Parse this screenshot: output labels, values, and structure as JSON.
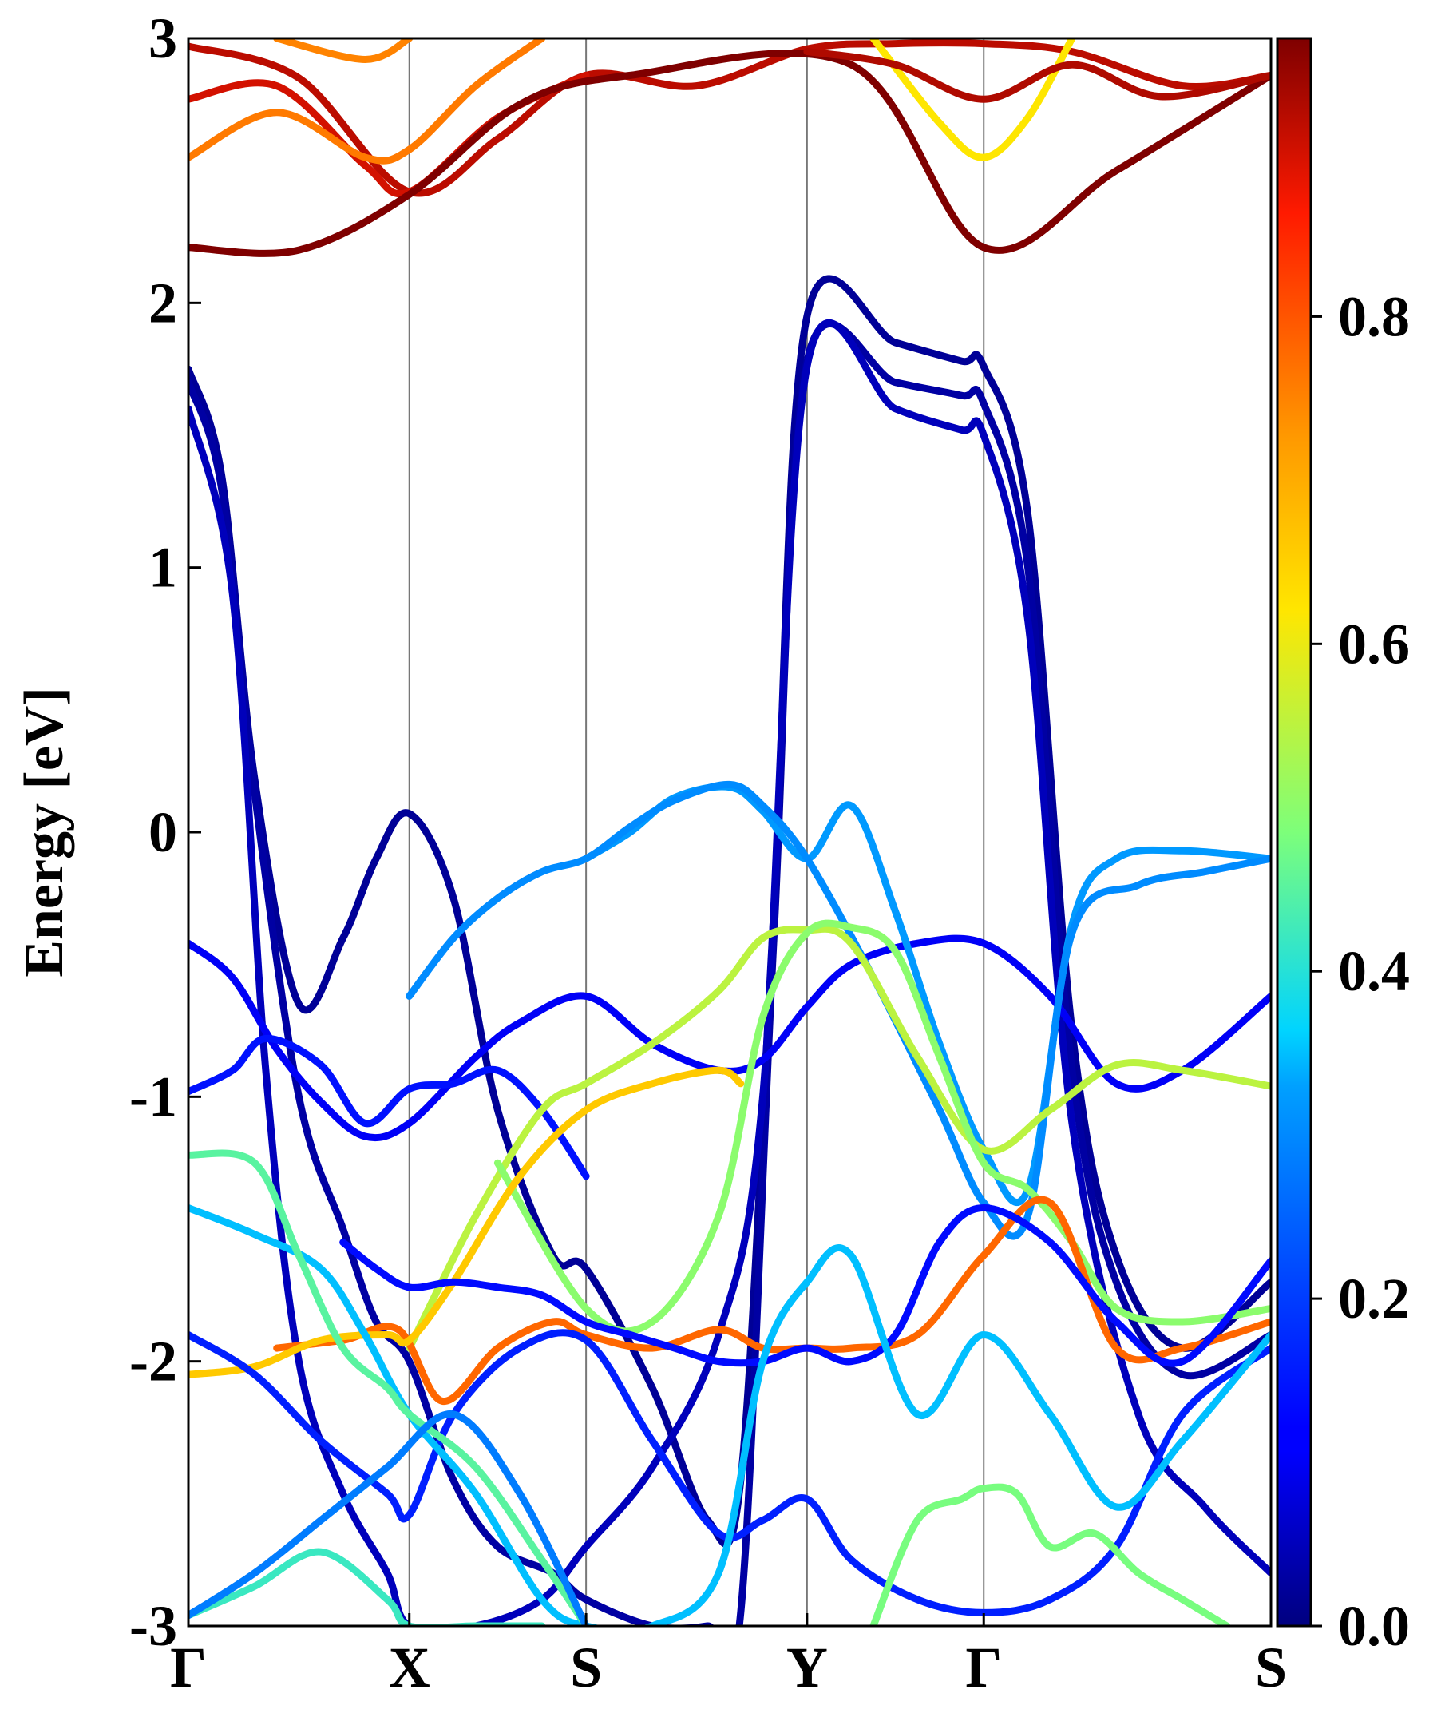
{
  "chart_data": {
    "type": "line",
    "title": "",
    "xlabel": "",
    "ylabel": "Energy [eV]",
    "ylim": [
      -3,
      3
    ],
    "kpath_labels": [
      "Γ",
      "X",
      "S",
      "Y",
      "Γ",
      "S"
    ],
    "kpath_positions": [
      0,
      1.0,
      1.8,
      2.8,
      3.6,
      4.9
    ],
    "yticks": [
      "-3",
      "-2",
      "-1",
      "0",
      "1",
      "2",
      "3"
    ],
    "colorbar": {
      "colormap": "jet",
      "range": [
        0.0,
        0.97
      ],
      "ticks": [
        "0.0",
        "0.2",
        "0.4",
        "0.6",
        "0.8"
      ]
    },
    "series": [
      {
        "name": "cb-top-a",
        "weight": 0.92,
        "x": [
          0,
          0.5,
          1.0,
          1.4,
          1.8,
          2.3,
          2.8,
          3.2,
          3.6,
          4.0,
          4.5,
          4.9
        ],
        "y": [
          2.97,
          2.85,
          2.42,
          2.62,
          2.86,
          2.82,
          2.96,
          2.98,
          2.98,
          2.95,
          2.82,
          2.86
        ]
      },
      {
        "name": "cb-top-b",
        "weight": 0.9,
        "x": [
          0,
          0.4,
          0.8,
          1.0,
          1.4,
          1.8
        ],
        "y": [
          2.77,
          2.82,
          2.52,
          2.42,
          2.7,
          2.86
        ]
      },
      {
        "name": "cb-top-c",
        "weight": 0.76,
        "x": [
          0,
          0.4,
          0.8,
          1.0,
          1.3,
          1.6
        ],
        "y": [
          2.55,
          2.72,
          2.55,
          2.58,
          2.82,
          3.0
        ]
      },
      {
        "name": "cb-top-d",
        "weight": 0.75,
        "x": [
          0.4,
          0.8,
          1.0
        ],
        "y": [
          3.0,
          2.92,
          3.0
        ]
      },
      {
        "name": "cb-low",
        "weight": 0.97,
        "x": [
          0,
          0.5,
          1.0,
          1.5,
          2.0,
          3.0,
          3.6,
          4.2,
          4.9
        ],
        "y": [
          2.21,
          2.2,
          2.41,
          2.75,
          2.86,
          2.9,
          2.21,
          2.5,
          2.86
        ]
      },
      {
        "name": "cb-y-a",
        "weight": 0.62,
        "x": [
          3.1,
          3.4,
          3.6,
          3.8,
          4.0
        ],
        "y": [
          3.0,
          2.68,
          2.55,
          2.7,
          3.0
        ]
      },
      {
        "name": "cb-y-b",
        "weight": 0.93,
        "x": [
          2.8,
          3.2,
          3.6,
          4.0,
          4.4,
          4.9
        ],
        "y": [
          2.95,
          2.9,
          2.77,
          2.9,
          2.78,
          2.86
        ]
      },
      {
        "name": "cond-a",
        "weight": 0.02,
        "x": [
          0,
          0.15,
          0.3,
          0.5,
          0.7,
          0.85,
          1.0,
          1.2,
          1.4,
          1.65,
          1.8,
          2.1,
          2.35,
          2.5,
          2.65,
          2.8,
          3.2,
          3.5,
          3.6,
          3.8,
          4.0,
          4.2,
          4.5,
          4.9
        ],
        "y": [
          1.75,
          1.35,
          0.2,
          -0.65,
          -0.4,
          -0.1,
          0.07,
          -0.25,
          -1.05,
          -1.6,
          -1.65,
          -2.1,
          -2.6,
          -2.45,
          -0.3,
          1.95,
          1.85,
          1.78,
          1.76,
          1.2,
          -0.75,
          -1.6,
          -1.95,
          -1.7
        ]
      },
      {
        "name": "cond-b",
        "weight": 0.03,
        "x": [
          0,
          0.15,
          0.3,
          0.5,
          0.7,
          0.85,
          1.0,
          1.2,
          1.4,
          1.65,
          1.8,
          2.1,
          2.35,
          2.5,
          2.65,
          2.8,
          3.2,
          3.5,
          3.6,
          3.8,
          4.0,
          4.2,
          4.5,
          4.9
        ],
        "y": [
          1.7,
          1.3,
          0.15,
          -1.0,
          -1.5,
          -1.85,
          -2.0,
          -2.45,
          -2.7,
          -2.8,
          -2.9,
          -3.0,
          -3.0,
          -2.95,
          -0.4,
          1.78,
          1.7,
          1.65,
          1.62,
          1.0,
          -0.9,
          -1.7,
          -2.05,
          -1.9
        ]
      },
      {
        "name": "cond-c",
        "weight": 0.05,
        "x": [
          0,
          0.2,
          0.35,
          0.5,
          0.7,
          0.9,
          1.0,
          1.3,
          1.6,
          1.8,
          2.1,
          2.4,
          2.6,
          2.8,
          3.2,
          3.5,
          3.6,
          3.8,
          4.0,
          4.3,
          4.6,
          4.9
        ],
        "y": [
          1.6,
          0.9,
          -0.9,
          -2.0,
          -2.5,
          -2.8,
          -3.0,
          -3.0,
          -2.9,
          -2.7,
          -2.4,
          -1.9,
          -1.0,
          1.76,
          1.6,
          1.52,
          1.5,
          0.8,
          -1.1,
          -2.2,
          -2.55,
          -2.8
        ]
      },
      {
        "name": "val-flat",
        "weight": 0.1,
        "x": [
          0,
          0.2,
          0.4,
          0.6,
          0.8,
          1.0,
          1.3,
          1.5,
          1.8,
          2.1,
          2.4,
          2.6,
          2.8,
          3.0,
          3.3,
          3.6,
          3.9,
          4.2,
          4.5,
          4.9
        ],
        "y": [
          -0.42,
          -0.55,
          -0.82,
          -1.02,
          -1.15,
          -1.1,
          -0.85,
          -0.72,
          -0.62,
          -0.8,
          -0.9,
          -0.86,
          -0.66,
          -0.5,
          -0.42,
          -0.42,
          -0.62,
          -0.95,
          -0.9,
          -0.62
        ]
      },
      {
        "name": "val-bluish",
        "weight": 0.13,
        "x": [
          0,
          0.2,
          0.35,
          0.6,
          0.8,
          1.0,
          1.2,
          1.4,
          1.6,
          1.8
        ],
        "y": [
          -0.98,
          -0.9,
          -0.78,
          -0.88,
          -1.1,
          -0.97,
          -0.95,
          -0.9,
          -1.05,
          -1.3
        ]
      },
      {
        "name": "val-cyan-top",
        "weight": 0.32,
        "x": [
          1.8,
          2.0,
          2.2,
          2.45,
          2.6,
          2.8,
          3.0,
          3.2,
          3.4,
          3.6,
          3.8,
          4.0,
          4.2,
          4.5,
          4.9
        ],
        "y": [
          -0.1,
          0.0,
          0.13,
          0.17,
          0.08,
          -0.1,
          0.1,
          -0.3,
          -0.8,
          -1.2,
          -1.35,
          -0.35,
          -0.1,
          -0.07,
          -0.1
        ]
      },
      {
        "name": "val-cyan-2",
        "weight": 0.3,
        "x": [
          1.0,
          1.2,
          1.4,
          1.6,
          1.8,
          2.0,
          2.2,
          2.45,
          2.6,
          2.8,
          3.1,
          3.4,
          3.6,
          3.8,
          4.0,
          4.3,
          4.6,
          4.9
        ],
        "y": [
          -0.62,
          -0.4,
          -0.25,
          -0.15,
          -0.1,
          0.02,
          0.12,
          0.18,
          0.1,
          -0.1,
          -0.55,
          -1.05,
          -1.4,
          -1.45,
          -0.38,
          -0.2,
          -0.15,
          -0.1
        ]
      },
      {
        "name": "val-green-arc",
        "weight": 0.55,
        "x": [
          1.0,
          1.3,
          1.6,
          1.8,
          2.1,
          2.4,
          2.6,
          2.8,
          3.0,
          3.3,
          3.6,
          3.9,
          4.2,
          4.5,
          4.9
        ],
        "y": [
          -1.95,
          -1.45,
          -1.05,
          -0.95,
          -0.8,
          -0.6,
          -0.4,
          -0.37,
          -0.42,
          -0.85,
          -1.2,
          -1.05,
          -0.88,
          -0.9,
          -0.96
        ]
      },
      {
        "name": "val-green-arc-2",
        "weight": 0.5,
        "x": [
          1.4,
          1.8,
          2.1,
          2.4,
          2.6,
          2.8,
          3.0,
          3.2,
          3.4,
          3.6,
          3.8,
          4.0,
          4.2,
          4.5,
          4.9
        ],
        "y": [
          -1.25,
          -1.8,
          -1.85,
          -1.45,
          -0.7,
          -0.38,
          -0.36,
          -0.45,
          -0.85,
          -1.25,
          -1.35,
          -1.55,
          -1.8,
          -1.85,
          -1.8
        ]
      },
      {
        "name": "val-orange",
        "weight": 0.78,
        "x": [
          0.4,
          0.7,
          0.95,
          1.15,
          1.4,
          1.65,
          1.8,
          2.1,
          2.4,
          2.6,
          2.8,
          3.0,
          3.3,
          3.6,
          3.9,
          4.2,
          4.5,
          4.9
        ],
        "y": [
          -1.95,
          -1.92,
          -1.88,
          -2.15,
          -1.95,
          -1.85,
          -1.9,
          -1.95,
          -1.88,
          -1.95,
          -1.95,
          -1.95,
          -1.9,
          -1.6,
          -1.4,
          -1.95,
          -1.95,
          -1.85
        ]
      },
      {
        "name": "val-yellow",
        "weight": 0.66,
        "x": [
          0,
          0.3,
          0.6,
          0.9,
          1.0,
          1.2,
          1.5,
          1.8,
          2.1,
          2.4,
          2.5
        ],
        "y": [
          -2.05,
          -2.02,
          -1.92,
          -1.9,
          -1.92,
          -1.7,
          -1.3,
          -1.05,
          -0.95,
          -0.9,
          -0.95
        ]
      },
      {
        "name": "val-blue-mid",
        "weight": 0.12,
        "x": [
          0.7,
          0.85,
          1.0,
          1.2,
          1.4,
          1.6,
          1.8,
          2.0,
          2.2,
          2.4,
          2.6,
          2.8,
          3.0,
          3.2,
          3.4,
          3.6,
          3.9,
          4.2,
          4.5,
          4.9
        ],
        "y": [
          -1.55,
          -1.65,
          -1.72,
          -1.7,
          -1.72,
          -1.75,
          -1.85,
          -1.9,
          -1.95,
          -2.0,
          -2.0,
          -1.95,
          -2.0,
          -1.9,
          -1.55,
          -1.42,
          -1.55,
          -1.85,
          -2.0,
          -1.62
        ]
      },
      {
        "name": "val-blue-low",
        "weight": 0.15,
        "x": [
          0,
          0.3,
          0.6,
          0.9,
          1.0,
          1.2,
          1.5,
          1.8,
          2.1,
          2.4,
          2.6,
          2.8,
          3.0,
          3.3,
          3.6,
          3.9,
          4.2,
          4.5,
          4.9
        ],
        "y": [
          -1.9,
          -2.05,
          -2.3,
          -2.5,
          -2.58,
          -2.2,
          -1.95,
          -1.92,
          -2.3,
          -2.65,
          -2.6,
          -2.52,
          -2.75,
          -2.9,
          -2.95,
          -2.9,
          -2.7,
          -2.2,
          -1.95
        ]
      },
      {
        "name": "val-cyan-low",
        "weight": 0.35,
        "x": [
          0,
          0.3,
          0.6,
          0.8,
          1.0,
          1.3,
          1.6,
          1.8,
          2.1,
          2.4,
          2.6,
          2.8,
          3.0,
          3.3,
          3.6,
          3.9,
          4.2,
          4.5,
          4.9
        ],
        "y": [
          -1.42,
          -1.52,
          -1.65,
          -1.9,
          -2.2,
          -2.5,
          -2.9,
          -3.0,
          -3.0,
          -2.8,
          -2.0,
          -1.7,
          -1.6,
          -2.2,
          -1.9,
          -2.2,
          -2.55,
          -2.3,
          -1.9
        ]
      },
      {
        "name": "val-green-low",
        "weight": 0.45,
        "x": [
          0,
          0.3,
          0.5,
          0.7,
          0.9,
          1.0,
          1.3,
          1.6,
          1.8
        ],
        "y": [
          -1.22,
          -1.25,
          -1.6,
          -1.95,
          -2.1,
          -2.2,
          -2.4,
          -2.75,
          -3.0
        ]
      },
      {
        "name": "val-green-arc-low",
        "weight": 0.48,
        "x": [
          3.1,
          3.3,
          3.5,
          3.6,
          3.75,
          3.9,
          4.1,
          4.3,
          4.5,
          4.7
        ],
        "y": [
          -3.0,
          -2.6,
          -2.52,
          -2.48,
          -2.5,
          -2.7,
          -2.65,
          -2.8,
          -2.9,
          -3.0
        ]
      },
      {
        "name": "val-deep-green",
        "weight": 0.42,
        "x": [
          0,
          0.3,
          0.6,
          0.9,
          1.0,
          1.3,
          1.6
        ],
        "y": [
          -2.96,
          -2.85,
          -2.72,
          -2.9,
          -3.0,
          -3.0,
          -3.0
        ]
      },
      {
        "name": "val-bottom-cyan",
        "weight": 0.28,
        "x": [
          0,
          0.3,
          0.6,
          0.9,
          1.2,
          1.5,
          1.8
        ],
        "y": [
          -2.96,
          -2.8,
          -2.6,
          -2.4,
          -2.2,
          -2.5,
          -3.0
        ]
      }
    ]
  }
}
